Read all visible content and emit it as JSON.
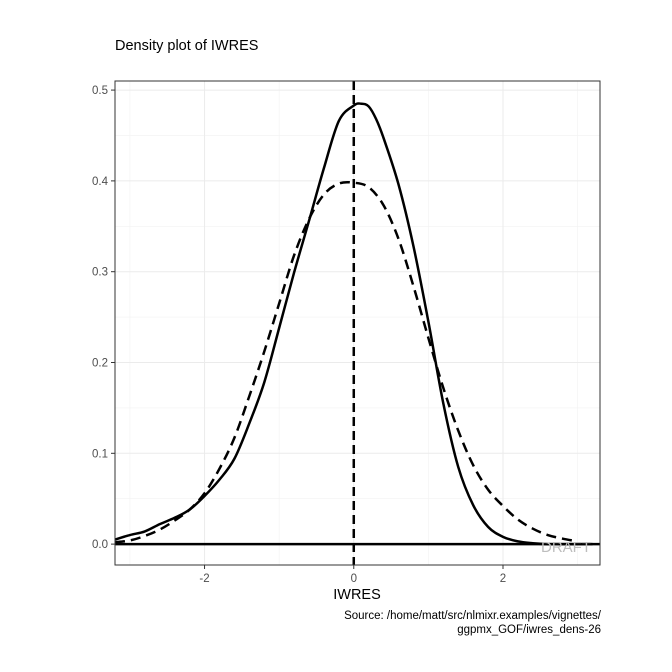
{
  "chart_data": {
    "type": "line",
    "title": "Density plot of IWRES",
    "xlabel": "IWRES",
    "ylabel": "",
    "caption_line1": "Source: /home/matt/src/nlmixr.examples/vignettes/",
    "caption_line2": "ggpmx_GOF/iwres_dens-26",
    "watermark": "DRAFT",
    "xlim": [
      -3.2,
      3.3
    ],
    "ylim": [
      -0.023,
      0.51
    ],
    "x_ticks": [
      -2,
      0,
      2
    ],
    "x_tick_labels": [
      "-2",
      "0",
      "2"
    ],
    "y_ticks": [
      0.0,
      0.1,
      0.2,
      0.3,
      0.4,
      0.5
    ],
    "y_tick_labels": [
      "0.0",
      "0.1",
      "0.2",
      "0.3",
      "0.4",
      "0.5"
    ],
    "grid": true,
    "vline_x": 0,
    "hline_y": 0,
    "series": [
      {
        "style": "solid",
        "color": "#000000",
        "x": [
          -3.2,
          -3.0,
          -2.8,
          -2.6,
          -2.4,
          -2.2,
          -2.0,
          -1.8,
          -1.6,
          -1.4,
          -1.2,
          -1.0,
          -0.8,
          -0.6,
          -0.4,
          -0.2,
          0.0,
          0.1,
          0.2,
          0.3,
          0.4,
          0.6,
          0.8,
          1.0,
          1.2,
          1.4,
          1.6,
          1.8,
          2.0,
          2.2,
          2.4,
          2.6,
          2.8,
          3.0,
          3.2
        ],
        "y": [
          0.005,
          0.01,
          0.014,
          0.022,
          0.029,
          0.038,
          0.053,
          0.071,
          0.094,
          0.133,
          0.178,
          0.238,
          0.299,
          0.356,
          0.414,
          0.466,
          0.483,
          0.485,
          0.482,
          0.468,
          0.447,
          0.396,
          0.328,
          0.245,
          0.155,
          0.085,
          0.043,
          0.019,
          0.008,
          0.003,
          0.001,
          0.0,
          0.0,
          0.0,
          0.0
        ]
      },
      {
        "style": "dashed",
        "color": "#000000",
        "x": [
          -3.2,
          -3.0,
          -2.8,
          -2.6,
          -2.4,
          -2.2,
          -2.0,
          -1.8,
          -1.6,
          -1.4,
          -1.2,
          -1.0,
          -0.8,
          -0.6,
          -0.4,
          -0.2,
          0.0,
          0.2,
          0.4,
          0.6,
          0.8,
          1.0,
          1.2,
          1.4,
          1.6,
          1.8,
          2.0,
          2.2,
          2.4,
          2.6,
          2.8,
          3.0
        ],
        "y": [
          0.002,
          0.004,
          0.009,
          0.016,
          0.026,
          0.038,
          0.056,
          0.083,
          0.117,
          0.163,
          0.212,
          0.265,
          0.318,
          0.358,
          0.385,
          0.397,
          0.398,
          0.393,
          0.373,
          0.336,
          0.284,
          0.227,
          0.172,
          0.125,
          0.087,
          0.06,
          0.042,
          0.027,
          0.017,
          0.01,
          0.006,
          0.003
        ]
      }
    ]
  }
}
